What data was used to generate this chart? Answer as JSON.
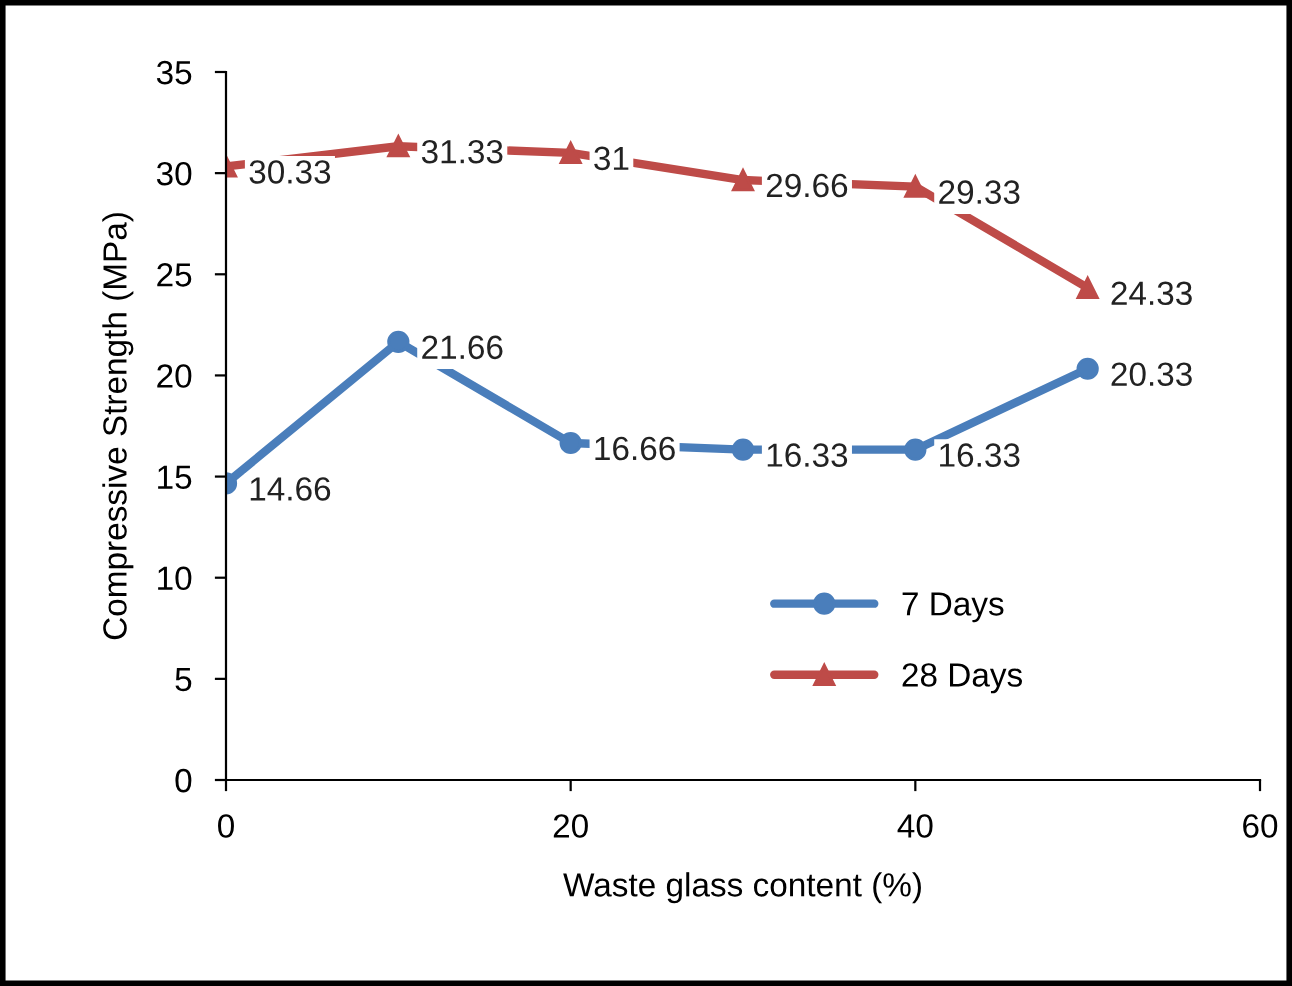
{
  "chart_data": {
    "type": "line",
    "xlabel": "Waste glass content (%)",
    "ylabel": "Compressive Strength (MPa)",
    "x": [
      0,
      10,
      20,
      30,
      40,
      50
    ],
    "series": [
      {
        "name": "7 Days",
        "color": "#4a7ebb",
        "marker": "circle",
        "values": [
          14.66,
          21.66,
          16.66,
          16.33,
          16.33,
          20.33
        ]
      },
      {
        "name": "28 Days",
        "color": "#be4b48",
        "marker": "triangle",
        "values": [
          30.33,
          31.33,
          31,
          29.66,
          29.33,
          24.33
        ]
      }
    ],
    "xlim": [
      0,
      60
    ],
    "xticks": [
      0,
      20,
      40,
      60
    ],
    "ylim": [
      0,
      35
    ],
    "yticks": [
      0,
      5,
      10,
      15,
      20,
      25,
      30,
      35
    ],
    "grid": false,
    "legend": "bottom right",
    "data_labels": true,
    "line_style": "solid"
  }
}
